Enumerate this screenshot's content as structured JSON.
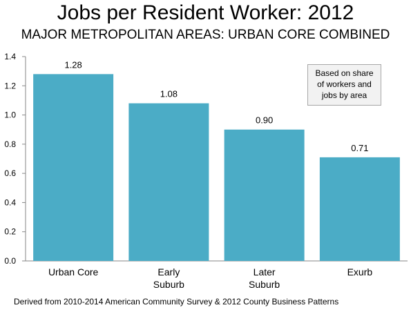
{
  "chart_data": {
    "type": "bar",
    "title": "Jobs per Resident Worker: 2012",
    "subtitle": "MAJOR METROPOLITAN AREAS: URBAN CORE COMBINED",
    "categories": [
      [
        "Urban Core"
      ],
      [
        "Early",
        "Suburb"
      ],
      [
        "Later",
        "Suburb"
      ],
      [
        "Exurb"
      ]
    ],
    "values": [
      1.28,
      1.08,
      0.9,
      0.71
    ],
    "value_labels": [
      "1.28",
      "1.08",
      "0.90",
      "0.71"
    ],
    "ylim": [
      0,
      1.4
    ],
    "yticks": [
      "0.0",
      "0.2",
      "0.4",
      "0.6",
      "0.8",
      "1.0",
      "1.2",
      "1.4"
    ],
    "ytick_values": [
      0,
      0.2,
      0.4,
      0.6,
      0.8,
      1.0,
      1.2,
      1.4
    ],
    "bar_color": "#4bacc6",
    "grid": false,
    "annotation": [
      "Based on share",
      "of workers and",
      "jobs by area"
    ],
    "source": "Derived from 2010-2014 American Community Survey & 2012 County Business Patterns"
  }
}
